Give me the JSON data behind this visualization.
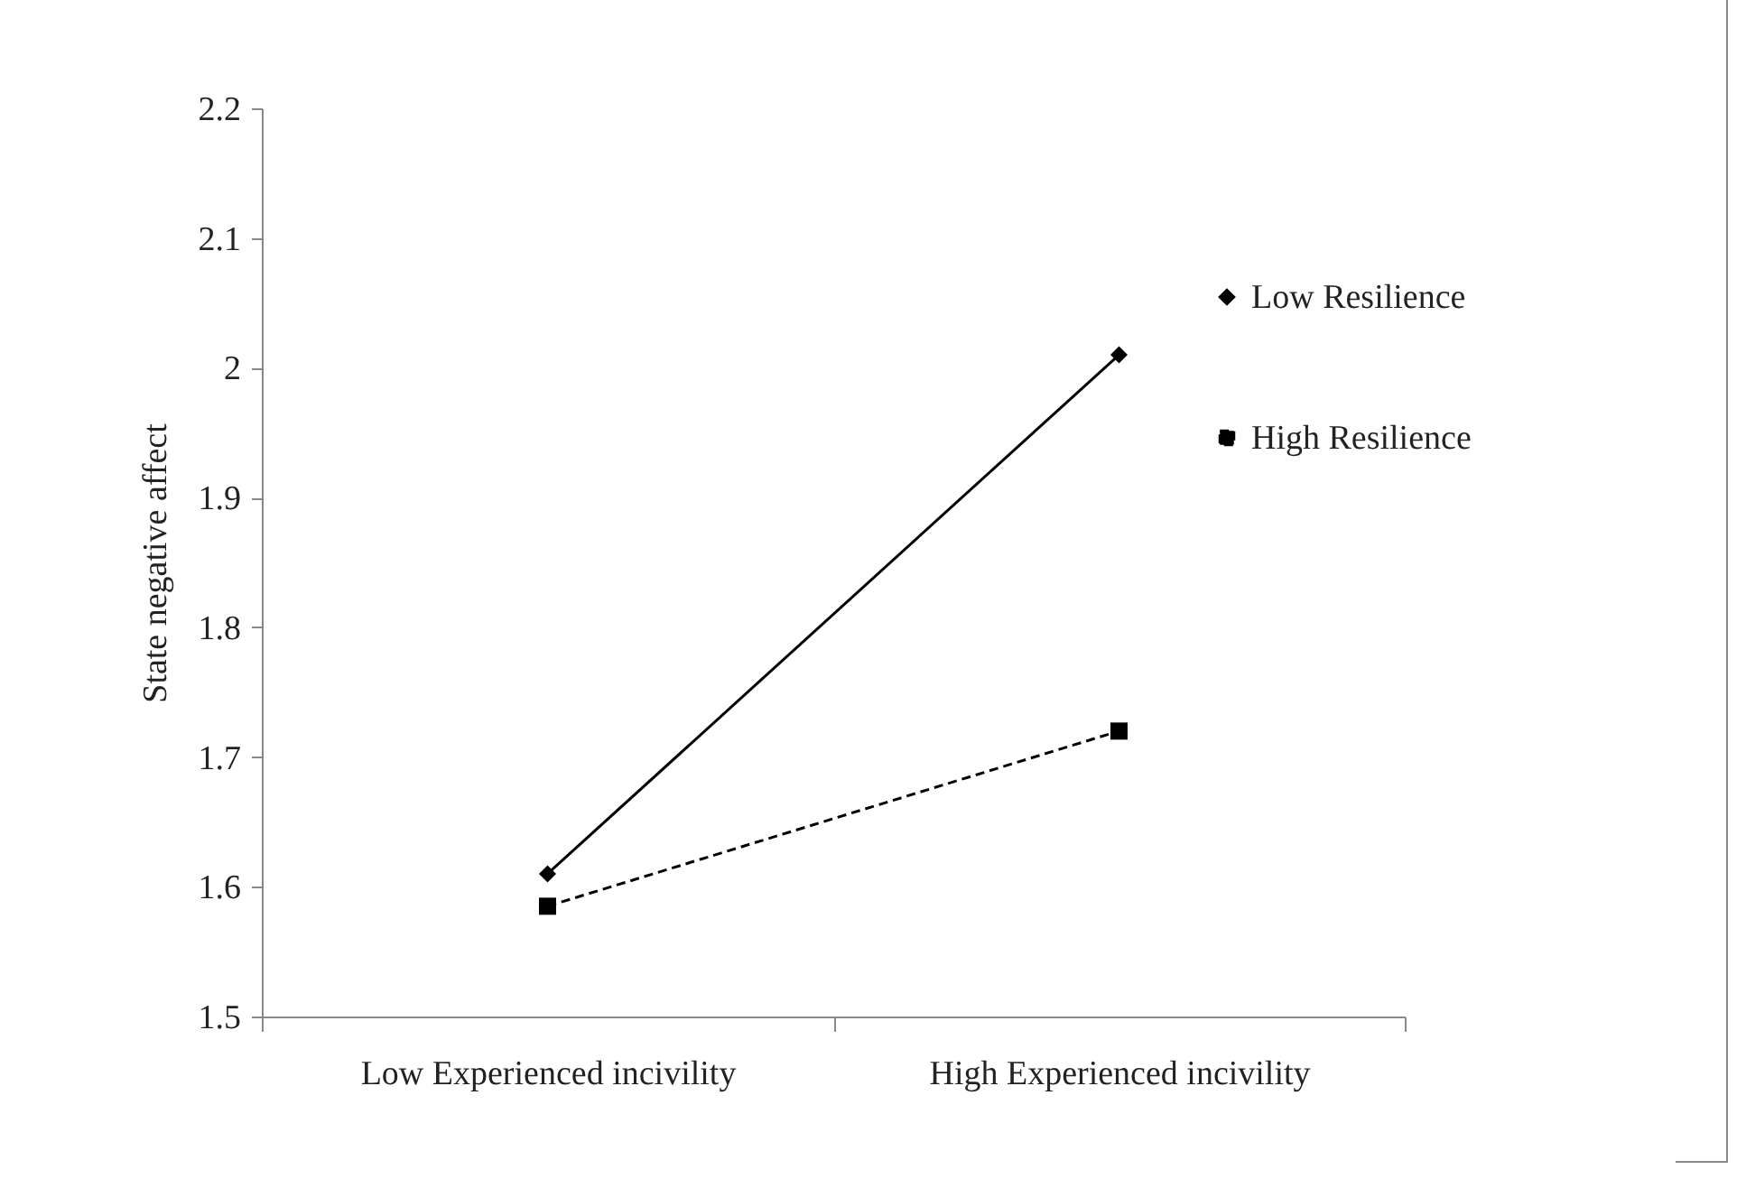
{
  "chart_data": {
    "type": "line",
    "ylabel": "State negative affect",
    "categories": [
      "Low Experienced incivility",
      "High Experienced incivility"
    ],
    "ylim": [
      1.5,
      2.2
    ],
    "yticks": [
      1.5,
      1.6,
      1.7,
      1.8,
      1.9,
      2,
      2.1,
      2.2
    ],
    "grid": false,
    "legend": "right",
    "series": [
      {
        "name": "Low Resilience",
        "color": "#000000",
        "marker": "diamond",
        "line_style": "solid",
        "values": [
          1.61,
          2.01
        ]
      },
      {
        "name": "High Resilience",
        "color": "#000000",
        "marker": "square",
        "line_style": "dashed",
        "values": [
          1.585,
          1.72
        ]
      }
    ]
  }
}
